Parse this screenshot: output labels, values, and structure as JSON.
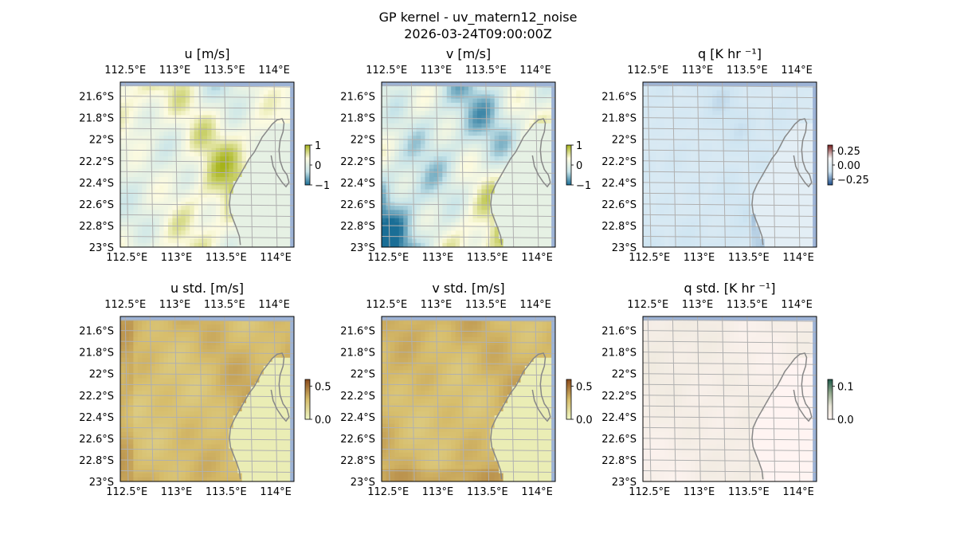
{
  "figure": {
    "title_line1": "GP kernel - uv_matern12_noise",
    "title_line2": "2026-03-24T09:00:00Z"
  },
  "axes": {
    "lon_ticks": [
      112.5,
      113,
      113.5,
      114
    ],
    "lon_labels": [
      "112.5°E",
      "113°E",
      "113.5°E",
      "114°E"
    ],
    "lat_ticks": [
      -21.6,
      -21.8,
      -22,
      -22.2,
      -22.4,
      -22.6,
      -22.8,
      -23
    ],
    "lat_labels": [
      "21.6°S",
      "21.8°S",
      "22°S",
      "22.2°S",
      "22.4°S",
      "22.6°S",
      "22.8°S",
      "23°S"
    ],
    "lon_range": [
      112.45,
      114.2
    ],
    "lat_range": [
      -23.0,
      -21.47
    ]
  },
  "colors": {
    "ocean_edge": "#9db3d6",
    "coast_line": "#888888",
    "grid": "#b0b0b0"
  },
  "chart_data": [
    {
      "type": "heatmap",
      "title": "u [m/s]",
      "field": "u",
      "colorbar": {
        "ticks": [
          1,
          0,
          -1
        ],
        "labels": [
          "1",
          "0",
          "−1"
        ],
        "range": [
          -1,
          1
        ],
        "colors": [
          "#1a6e96",
          "#c7e4e9",
          "#fdfbe0",
          "#a6b31a"
        ]
      },
      "colormap": "diverging_teal_olive",
      "grid": true
    },
    {
      "type": "heatmap",
      "title": "v [m/s]",
      "field": "v",
      "colorbar": {
        "ticks": [
          1,
          0,
          -1
        ],
        "labels": [
          "1",
          "0",
          "−1"
        ],
        "range": [
          -1,
          1
        ],
        "colors": [
          "#1a6e96",
          "#c7e4e9",
          "#fdfbe0",
          "#a6b31a"
        ]
      },
      "colormap": "diverging_teal_olive",
      "grid": true
    },
    {
      "type": "heatmap",
      "title": "q [K hr ⁻¹]",
      "field": "q",
      "colorbar": {
        "ticks": [
          0.25,
          0.0,
          -0.25
        ],
        "labels": [
          "0.25",
          "0.00",
          "−0.25"
        ],
        "range": [
          -0.35,
          0.35
        ],
        "colors": [
          "#1f4e8c",
          "#cfe5f2",
          "#f7f7f7",
          "#7a1d1d"
        ]
      },
      "colormap": "diverging_blue_red",
      "grid": true
    },
    {
      "type": "heatmap",
      "title": "u std. [m/s]",
      "field": "u_std",
      "colorbar": {
        "ticks": [
          0.5,
          0.0
        ],
        "labels": [
          "0.5",
          "0.0"
        ],
        "range": [
          0,
          0.6
        ],
        "colors": [
          "#eef7c4",
          "#d6bc6a",
          "#8a4a1c"
        ]
      },
      "colormap": "sequential_yellow_brown",
      "grid": true
    },
    {
      "type": "heatmap",
      "title": "v std. [m/s]",
      "field": "v_std",
      "colorbar": {
        "ticks": [
          0.5,
          0.0
        ],
        "labels": [
          "0.5",
          "0.0"
        ],
        "range": [
          0,
          0.6
        ],
        "colors": [
          "#eef7c4",
          "#d6bc6a",
          "#8a4a1c"
        ]
      },
      "colormap": "sequential_yellow_brown",
      "grid": true
    },
    {
      "type": "heatmap",
      "title": "q std. [K hr ⁻¹]",
      "field": "q_std",
      "colorbar": {
        "ticks": [
          0.1,
          0.0
        ],
        "labels": [
          "0.1",
          "0.0"
        ],
        "range": [
          0,
          0.12
        ],
        "colors": [
          "#fff4f2",
          "#e9e6d8",
          "#8fa68a",
          "#1f5a4a"
        ]
      },
      "colormap": "sequential_pink_green",
      "grid": true
    }
  ]
}
